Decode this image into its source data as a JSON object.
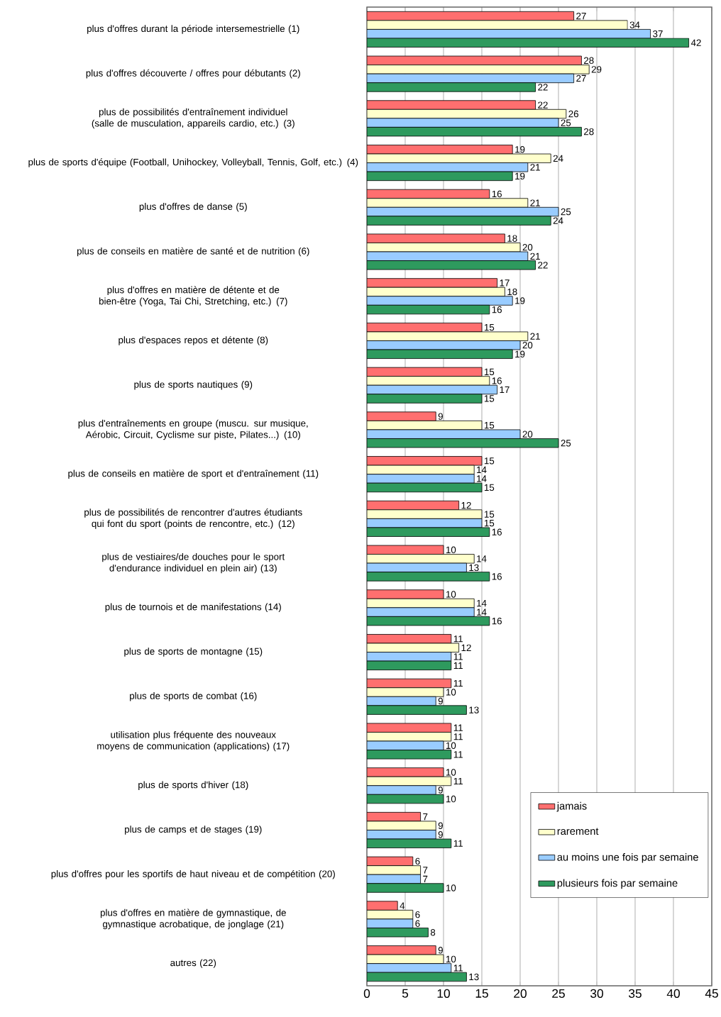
{
  "chart_data": {
    "type": "bar",
    "orientation": "horizontal",
    "categories": [
      "plus d'offres durant la période intersemestrielle (1)",
      "plus d'offres découverte / offres pour débutants (2)",
      "plus de possibilités d'entraînement individuel (salle de musculation, appareils cardio, etc.) (3)",
      "plus de sports d'équipe (Football, Unihockey, Volleyball, Tennis, Golf, etc.) (4)",
      "plus d'offres de danse (5)",
      "plus de conseils en matière de santé et de nutrition (6)",
      "plus d'offres en matière de détente et de bien-être (Yoga, Tai Chi, Stretching, etc.) (7)",
      "plus d'espaces repos et détente (8)",
      "plus de sports nautiques (9)",
      "plus d'entraînements en groupe (muscu. sur musique, Aérobic, Circuit, Cyclisme sur piste, Pilates...) (10)",
      "plus de conseils en matière de sport et d'entraînement (11)",
      "plus de possibilités de rencontrer d'autres étudiants qui font du sport (points de rencontre, etc.) (12)",
      "plus de vestiaires/de douches pour le sport d'endurance individuel en plein air) (13)",
      "plus de tournois et de manifestations (14)",
      "plus de sports de montagne (15)",
      "plus de sports de combat (16)",
      "utilisation plus fréquente des nouveaux moyens de communication (applications) (17)",
      "plus de sports d'hiver (18)",
      "plus de camps et de stages (19)",
      "plus d'offres pour les sportifs de haut niveau et de compétition (20)",
      "plus d'offres en matière de gymnastique, de gymnastique acrobatique, de jonglage (21)",
      "autres (22)"
    ],
    "series": [
      {
        "name": "jamais",
        "color": "#ff6f6f",
        "values": [
          27,
          28,
          22,
          19,
          16,
          18,
          17,
          15,
          15,
          9,
          15,
          12,
          10,
          10,
          11,
          11,
          11,
          10,
          7,
          6,
          4,
          9
        ]
      },
      {
        "name": "rarement",
        "color": "#ffffcc",
        "values": [
          34,
          29,
          26,
          24,
          21,
          20,
          18,
          21,
          16,
          15,
          14,
          15,
          14,
          14,
          12,
          10,
          11,
          11,
          9,
          7,
          6,
          10
        ]
      },
      {
        "name": "au moins une fois par semaine",
        "color": "#99ccff",
        "values": [
          37,
          27,
          25,
          21,
          25,
          21,
          19,
          20,
          17,
          20,
          14,
          15,
          13,
          14,
          11,
          9,
          10,
          9,
          9,
          7,
          6,
          11
        ]
      },
      {
        "name": "plusieurs fois par semaine",
        "color": "#2e9a5e",
        "values": [
          42,
          22,
          28,
          19,
          24,
          22,
          16,
          19,
          15,
          25,
          15,
          16,
          16,
          16,
          11,
          13,
          11,
          10,
          11,
          10,
          8,
          13
        ]
      }
    ],
    "xlim": [
      0,
      45
    ],
    "xticks": [
      0,
      5,
      10,
      15,
      20,
      25,
      30,
      35,
      40,
      45
    ],
    "grid": "x",
    "legend": "bottom right",
    "data_labels": true
  }
}
